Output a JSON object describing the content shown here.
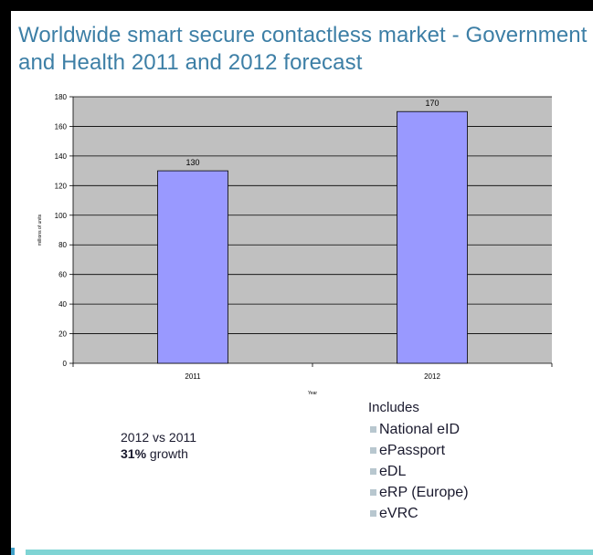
{
  "slide": {
    "title": "Worldwide smart secure contactless market - Government and Health 2011 and 2012 forecast"
  },
  "chart_data": {
    "type": "bar",
    "categories": [
      "2011",
      "2012"
    ],
    "values": [
      130,
      170
    ],
    "data_labels": [
      "130",
      "170"
    ],
    "title": "",
    "xlabel": "Year",
    "ylabel": "millions of units",
    "ylim": [
      0,
      180
    ],
    "yticks": [
      0,
      20,
      40,
      60,
      80,
      100,
      120,
      140,
      160,
      180
    ],
    "grid": true,
    "colors": {
      "bar": "#9999ff",
      "plot_background": "#c0c0c0",
      "gridline": "#000000"
    }
  },
  "note": {
    "line1": "2012 vs 2011",
    "growth_value": "31%",
    "growth_label": " growth"
  },
  "includes": {
    "heading": "Includes",
    "items": [
      "National eID",
      "ePassport",
      "eDL",
      "eRP (Europe)",
      "eVRC"
    ]
  },
  "colors": {
    "title": "#3d7fa6",
    "accent_bar": "#7fd4d4"
  }
}
